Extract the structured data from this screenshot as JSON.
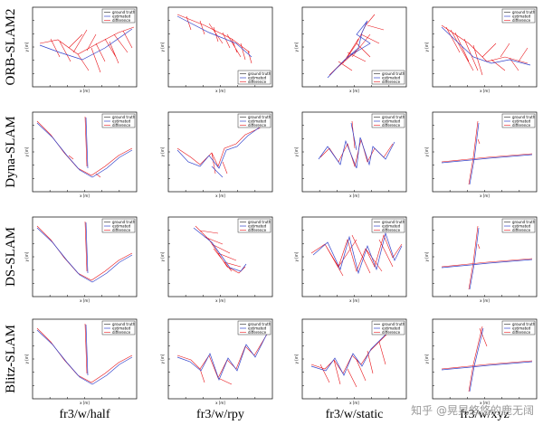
{
  "rows": [
    "ORB-SLAM2",
    "Dyna-SLAM",
    "DS-SLAM",
    "Blitz-SLAM"
  ],
  "columns": [
    "fr3/w/half",
    "fr3/w/rpy",
    "fr3/w/static",
    "fr3/w/xyz"
  ],
  "legend": [
    "ground truth",
    "estimated",
    "difference"
  ],
  "x_label": "x [m]",
  "y_label": "y [m]",
  "watermark": "知乎 @晃晃悠悠的鹿无阔"
}
